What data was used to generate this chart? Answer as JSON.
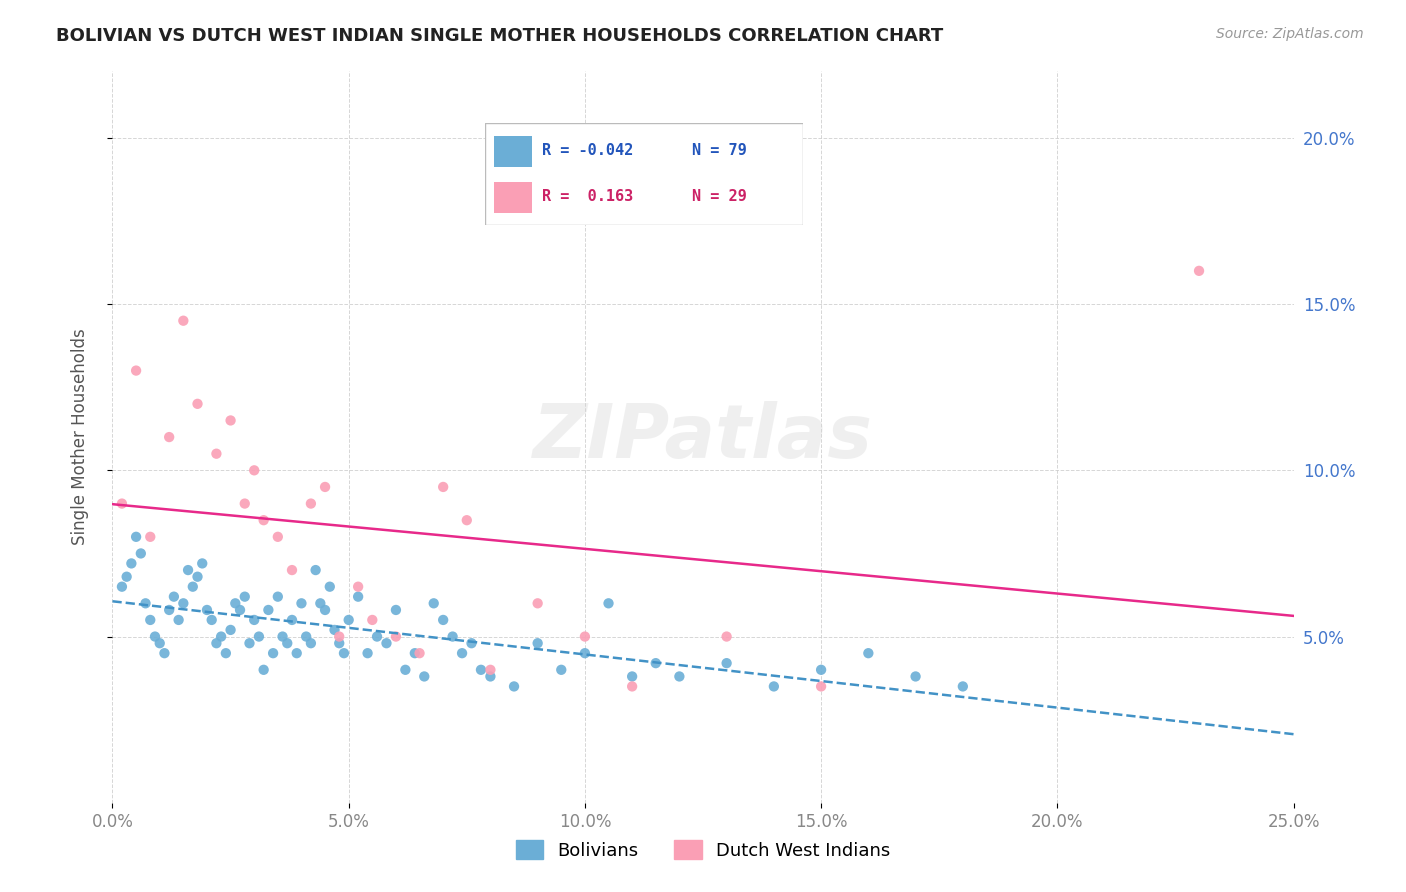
{
  "title": "BOLIVIAN VS DUTCH WEST INDIAN SINGLE MOTHER HOUSEHOLDS CORRELATION CHART",
  "source": "Source: ZipAtlas.com",
  "ylabel": "Single Mother Households",
  "xlabel_ticks": [
    "0.0%",
    "5.0%",
    "10.0%",
    "15.0%",
    "20.0%",
    "25.0%"
  ],
  "ylabel_ticks": [
    "5.0%",
    "10.0%",
    "15.0%",
    "20.0%"
  ],
  "xlim": [
    0.0,
    0.25
  ],
  "ylim": [
    0.0,
    0.22
  ],
  "blue_color": "#6baed6",
  "pink_color": "#fa9fb5",
  "blue_line_color": "#4292c6",
  "pink_line_color": "#e7298a",
  "tick_color_y": "#4477cc",
  "watermark": "ZIPatlas",
  "bolivians_x": [
    0.002,
    0.003,
    0.004,
    0.005,
    0.006,
    0.007,
    0.008,
    0.009,
    0.01,
    0.011,
    0.012,
    0.013,
    0.014,
    0.015,
    0.016,
    0.017,
    0.018,
    0.019,
    0.02,
    0.021,
    0.022,
    0.023,
    0.024,
    0.025,
    0.026,
    0.027,
    0.028,
    0.029,
    0.03,
    0.031,
    0.032,
    0.033,
    0.034,
    0.035,
    0.036,
    0.037,
    0.038,
    0.039,
    0.04,
    0.041,
    0.042,
    0.043,
    0.044,
    0.045,
    0.046,
    0.047,
    0.048,
    0.049,
    0.05,
    0.052,
    0.054,
    0.056,
    0.058,
    0.06,
    0.062,
    0.064,
    0.066,
    0.068,
    0.07,
    0.072,
    0.074,
    0.076,
    0.078,
    0.08,
    0.085,
    0.09,
    0.095,
    0.1,
    0.105,
    0.11,
    0.115,
    0.12,
    0.13,
    0.14,
    0.15,
    0.16,
    0.17,
    0.18
  ],
  "bolivians_y": [
    0.065,
    0.068,
    0.072,
    0.08,
    0.075,
    0.06,
    0.055,
    0.05,
    0.048,
    0.045,
    0.058,
    0.062,
    0.055,
    0.06,
    0.07,
    0.065,
    0.068,
    0.072,
    0.058,
    0.055,
    0.048,
    0.05,
    0.045,
    0.052,
    0.06,
    0.058,
    0.062,
    0.048,
    0.055,
    0.05,
    0.04,
    0.058,
    0.045,
    0.062,
    0.05,
    0.048,
    0.055,
    0.045,
    0.06,
    0.05,
    0.048,
    0.07,
    0.06,
    0.058,
    0.065,
    0.052,
    0.048,
    0.045,
    0.055,
    0.062,
    0.045,
    0.05,
    0.048,
    0.058,
    0.04,
    0.045,
    0.038,
    0.06,
    0.055,
    0.05,
    0.045,
    0.048,
    0.04,
    0.038,
    0.035,
    0.048,
    0.04,
    0.045,
    0.06,
    0.038,
    0.042,
    0.038,
    0.042,
    0.035,
    0.04,
    0.045,
    0.038,
    0.035
  ],
  "dutch_x": [
    0.002,
    0.005,
    0.008,
    0.012,
    0.015,
    0.018,
    0.022,
    0.025,
    0.028,
    0.03,
    0.032,
    0.035,
    0.038,
    0.042,
    0.045,
    0.048,
    0.052,
    0.055,
    0.06,
    0.065,
    0.07,
    0.075,
    0.08,
    0.09,
    0.1,
    0.11,
    0.13,
    0.15,
    0.23
  ],
  "dutch_y": [
    0.09,
    0.13,
    0.08,
    0.11,
    0.145,
    0.12,
    0.105,
    0.115,
    0.09,
    0.1,
    0.085,
    0.08,
    0.07,
    0.09,
    0.095,
    0.05,
    0.065,
    0.055,
    0.05,
    0.045,
    0.095,
    0.085,
    0.04,
    0.06,
    0.05,
    0.035,
    0.05,
    0.035,
    0.16
  ]
}
